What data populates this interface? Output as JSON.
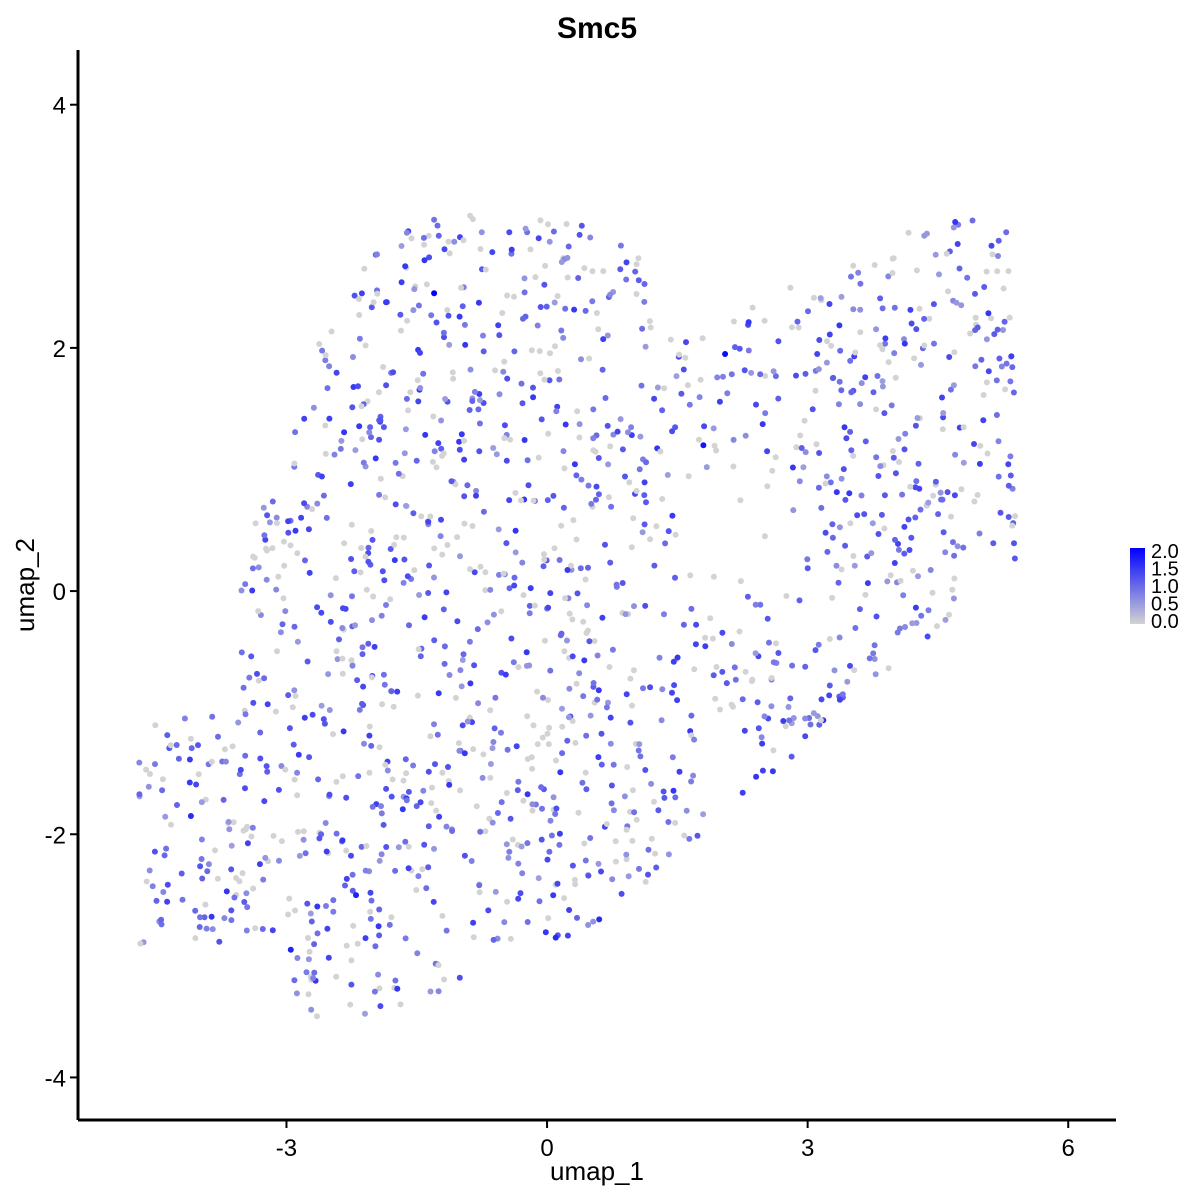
{
  "chart_data": {
    "type": "scatter",
    "title": "Smc5",
    "xlabel": "umap_1",
    "ylabel": "umap_2",
    "xlim": [
      -5.4,
      6.55
    ],
    "ylim": [
      -4.35,
      4.45
    ],
    "x_ticks": [
      -3,
      0,
      3,
      6
    ],
    "y_ticks": [
      -4,
      -2,
      0,
      2,
      4
    ],
    "x_tick_labels": [
      "-3",
      "0",
      "3",
      "6"
    ],
    "y_tick_labels": [
      "-4",
      "-2",
      "0",
      "2",
      "4"
    ],
    "grid": false,
    "color_scale": {
      "low": "#d3d3d3",
      "high": "#0000ff",
      "min": 0.0,
      "max": 2.0,
      "ticks": [
        0.0,
        0.5,
        1.0,
        1.5,
        2.0
      ],
      "tick_labels": [
        "0.0",
        "0.5",
        "1.0",
        "1.5",
        "2.0"
      ],
      "position": "right"
    },
    "points_note_count": 1600,
    "highlighted_points": [
      {
        "x": -1.3,
        "y": 2.45,
        "value": 2.0
      },
      {
        "x": 2.05,
        "y": 1.95,
        "value": 1.9
      },
      {
        "x": 1.8,
        "y": 1.2,
        "value": 1.8
      },
      {
        "x": 0.1,
        "y": -2.85,
        "value": 1.6
      },
      {
        "x": -2.2,
        "y": -2.5,
        "value": 1.7
      },
      {
        "x": -2.95,
        "y": -2.95,
        "value": 1.7
      },
      {
        "x": 0.6,
        "y": -2.7,
        "value": 1.6
      },
      {
        "x": -4.1,
        "y": -1.85,
        "value": 1.6
      }
    ]
  }
}
